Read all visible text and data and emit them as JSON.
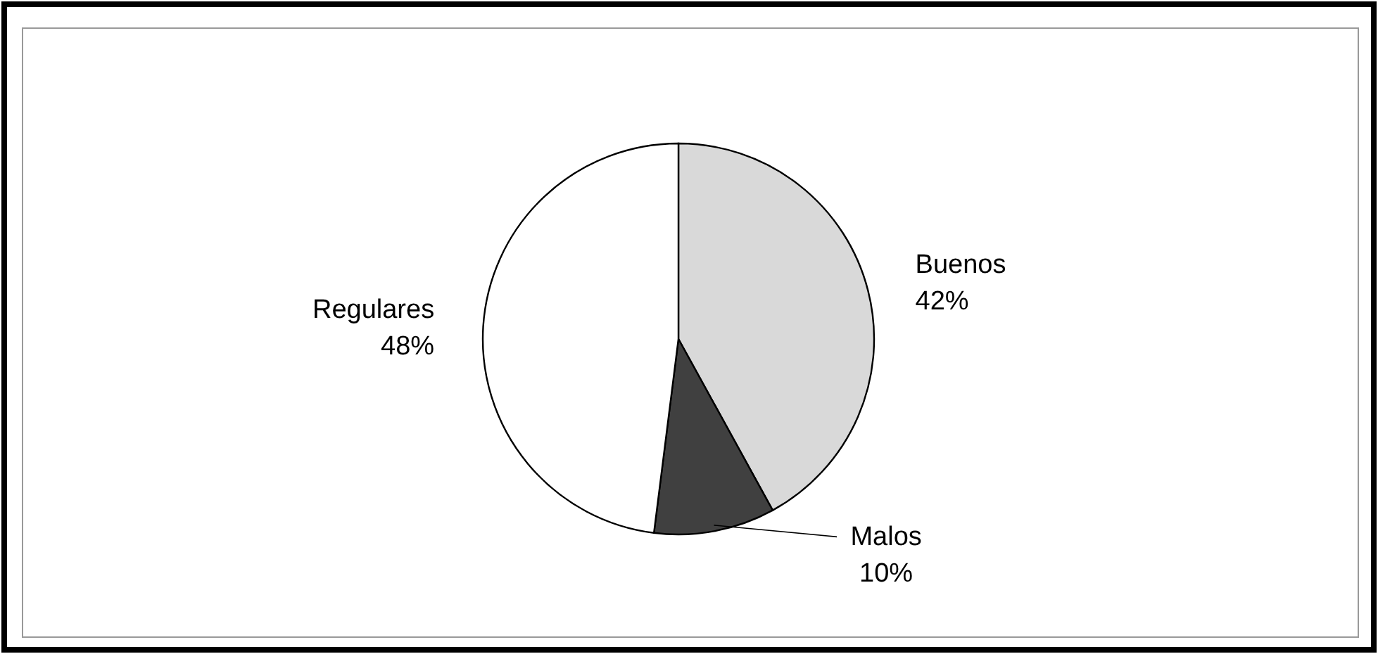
{
  "chart_data": {
    "type": "pie",
    "categories": [
      "Buenos",
      "Malos",
      "Regulares"
    ],
    "values": [
      42,
      10,
      48
    ],
    "colors": [
      "#d9d9d9",
      "#404040",
      "#ffffff"
    ],
    "value_labels": [
      "42%",
      "10%",
      "48%"
    ]
  }
}
